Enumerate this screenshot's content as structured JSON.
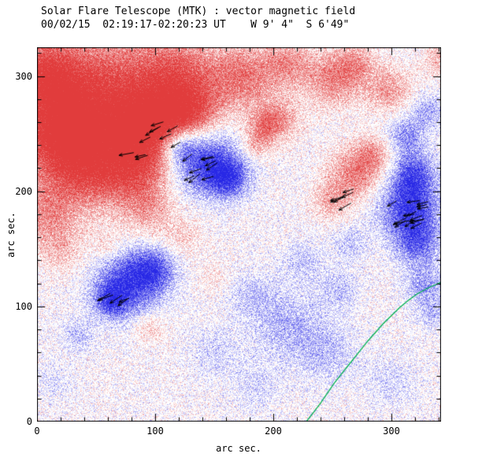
{
  "header": {
    "title": "Solar Flare Telescope (MTK) : vector magnetic field",
    "subtitle": "00/02/15  02:19:17-02:20:23 UT    W 9' 4\"  S 6'49\""
  },
  "chart_data": {
    "type": "heatmap",
    "title": "Solar Flare Telescope (MTK) : vector magnetic field",
    "subtitle": "00/02/15  02:19:17-02:20:23 UT    W 9' 4\"  S 6'49\"",
    "description": "Vector magnetogram: red = positive line-of-sight field, blue = negative field, black arrows = transverse field vectors, green curve = contour in lower-right",
    "xlabel": "arc sec.",
    "ylabel": "arc sec.",
    "x_range": [
      0,
      342
    ],
    "y_range": [
      0,
      325
    ],
    "x_ticks": [
      0,
      100,
      200,
      300
    ],
    "y_ticks": [
      0,
      100,
      200,
      300
    ],
    "minor_tick_step": 20,
    "grid": false,
    "colors": {
      "positive": "#e85050",
      "negative": "#3c3ce8",
      "contour": "#00b050",
      "arrow": "#000000",
      "axis": "#000000",
      "background": "#ffffff"
    },
    "blobs": [
      {
        "x": 55,
        "y": 285,
        "sigma": 38,
        "amp": 0.9
      },
      {
        "x": 15,
        "y": 255,
        "sigma": 28,
        "amp": 0.8
      },
      {
        "x": 95,
        "y": 255,
        "sigma": 22,
        "amp": 0.85
      },
      {
        "x": 130,
        "y": 265,
        "sigma": 18,
        "amp": 0.7
      },
      {
        "x": 40,
        "y": 220,
        "sigma": 26,
        "amp": 0.75
      },
      {
        "x": 85,
        "y": 215,
        "sigma": 20,
        "amp": 0.6
      },
      {
        "x": 120,
        "y": 300,
        "sigma": 25,
        "amp": 0.7
      },
      {
        "x": 5,
        "y": 305,
        "sigma": 20,
        "amp": 0.7
      },
      {
        "x": 5,
        "y": 180,
        "sigma": 18,
        "amp": 0.45
      },
      {
        "x": 20,
        "y": 150,
        "sigma": 15,
        "amp": 0.3
      },
      {
        "x": 175,
        "y": 300,
        "sigma": 20,
        "amp": 0.65
      },
      {
        "x": 212,
        "y": 312,
        "sigma": 14,
        "amp": 0.5
      },
      {
        "x": 250,
        "y": 298,
        "sigma": 17,
        "amp": 0.6
      },
      {
        "x": 298,
        "y": 288,
        "sigma": 14,
        "amp": 0.5
      },
      {
        "x": 270,
        "y": 312,
        "sigma": 12,
        "amp": 0.4
      },
      {
        "x": 205,
        "y": 262,
        "sigma": 13,
        "amp": 0.5
      },
      {
        "x": 186,
        "y": 242,
        "sigma": 9,
        "amp": 0.4
      },
      {
        "x": 192,
        "y": 258,
        "sigma": 9,
        "amp": 0.4
      },
      {
        "x": 268,
        "y": 215,
        "sigma": 16,
        "amp": 0.6
      },
      {
        "x": 248,
        "y": 192,
        "sigma": 11,
        "amp": 0.4
      },
      {
        "x": 285,
        "y": 232,
        "sigma": 12,
        "amp": 0.45
      },
      {
        "x": 95,
        "y": 180,
        "sigma": 16,
        "amp": 0.35
      },
      {
        "x": 125,
        "y": 160,
        "sigma": 12,
        "amp": 0.25
      },
      {
        "x": 95,
        "y": 82,
        "sigma": 9,
        "amp": 0.35
      },
      {
        "x": 60,
        "y": 152,
        "sigma": 10,
        "amp": 0.3
      },
      {
        "x": 150,
        "y": 125,
        "sigma": 10,
        "amp": 0.2
      },
      {
        "x": 340,
        "y": 315,
        "sigma": 10,
        "amp": 0.4
      },
      {
        "x": 140,
        "y": 228,
        "sigma": 20,
        "amp": -0.95
      },
      {
        "x": 162,
        "y": 212,
        "sigma": 12,
        "amp": -0.75
      },
      {
        "x": 120,
        "y": 240,
        "sigma": 10,
        "amp": -0.6
      },
      {
        "x": 78,
        "y": 122,
        "sigma": 20,
        "amp": -0.9
      },
      {
        "x": 100,
        "y": 133,
        "sigma": 12,
        "amp": -0.55
      },
      {
        "x": 62,
        "y": 105,
        "sigma": 10,
        "amp": -0.6
      },
      {
        "x": 315,
        "y": 185,
        "sigma": 18,
        "amp": -0.9
      },
      {
        "x": 318,
        "y": 215,
        "sigma": 13,
        "amp": -0.7
      },
      {
        "x": 322,
        "y": 155,
        "sigma": 13,
        "amp": -0.6
      },
      {
        "x": 312,
        "y": 248,
        "sigma": 12,
        "amp": -0.5
      },
      {
        "x": 330,
        "y": 270,
        "sigma": 10,
        "amp": -0.4
      },
      {
        "x": 328,
        "y": 120,
        "sigma": 12,
        "amp": -0.45
      },
      {
        "x": 335,
        "y": 95,
        "sigma": 10,
        "amp": -0.3
      },
      {
        "x": 210,
        "y": 85,
        "sigma": 22,
        "amp": -0.35
      },
      {
        "x": 245,
        "y": 60,
        "sigma": 18,
        "amp": -0.3
      },
      {
        "x": 150,
        "y": 60,
        "sigma": 14,
        "amp": -0.25
      },
      {
        "x": 185,
        "y": 30,
        "sigma": 14,
        "amp": -0.22
      },
      {
        "x": 255,
        "y": 115,
        "sigma": 12,
        "amp": -0.3
      },
      {
        "x": 225,
        "y": 140,
        "sigma": 12,
        "amp": -0.28
      },
      {
        "x": 300,
        "y": 35,
        "sigma": 15,
        "amp": -0.22
      },
      {
        "x": 180,
        "y": 110,
        "sigma": 14,
        "amp": -0.25
      },
      {
        "x": 35,
        "y": 75,
        "sigma": 10,
        "amp": -0.3
      },
      {
        "x": 15,
        "y": 35,
        "sigma": 10,
        "amp": -0.2
      },
      {
        "x": 265,
        "y": 155,
        "sigma": 10,
        "amp": -0.3
      }
    ],
    "arrow_clusters": [
      {
        "x": 110,
        "y": 253,
        "count": 7,
        "spread": 18,
        "angle": 200,
        "jitter": 25
      },
      {
        "x": 150,
        "y": 224,
        "count": 9,
        "spread": 20,
        "angle": 205,
        "jitter": 30
      },
      {
        "x": 88,
        "y": 231,
        "count": 3,
        "spread": 7,
        "angle": 195,
        "jitter": 20
      },
      {
        "x": 267,
        "y": 196,
        "count": 6,
        "spread": 11,
        "angle": 205,
        "jitter": 25
      },
      {
        "x": 316,
        "y": 182,
        "count": 15,
        "spread": 17,
        "angle": 200,
        "jitter": 30
      },
      {
        "x": 70,
        "y": 108,
        "count": 5,
        "spread": 9,
        "angle": 205,
        "jitter": 25
      }
    ],
    "contour_points": [
      [
        228,
        0
      ],
      [
        234,
        8
      ],
      [
        240,
        16
      ],
      [
        246,
        25
      ],
      [
        252,
        34
      ],
      [
        259,
        43
      ],
      [
        266,
        52
      ],
      [
        273,
        61
      ],
      [
        280,
        70
      ],
      [
        287,
        78
      ],
      [
        293,
        85
      ],
      [
        300,
        92
      ],
      [
        307,
        99
      ],
      [
        314,
        105
      ],
      [
        322,
        111
      ],
      [
        331,
        116
      ],
      [
        342,
        121
      ]
    ]
  }
}
